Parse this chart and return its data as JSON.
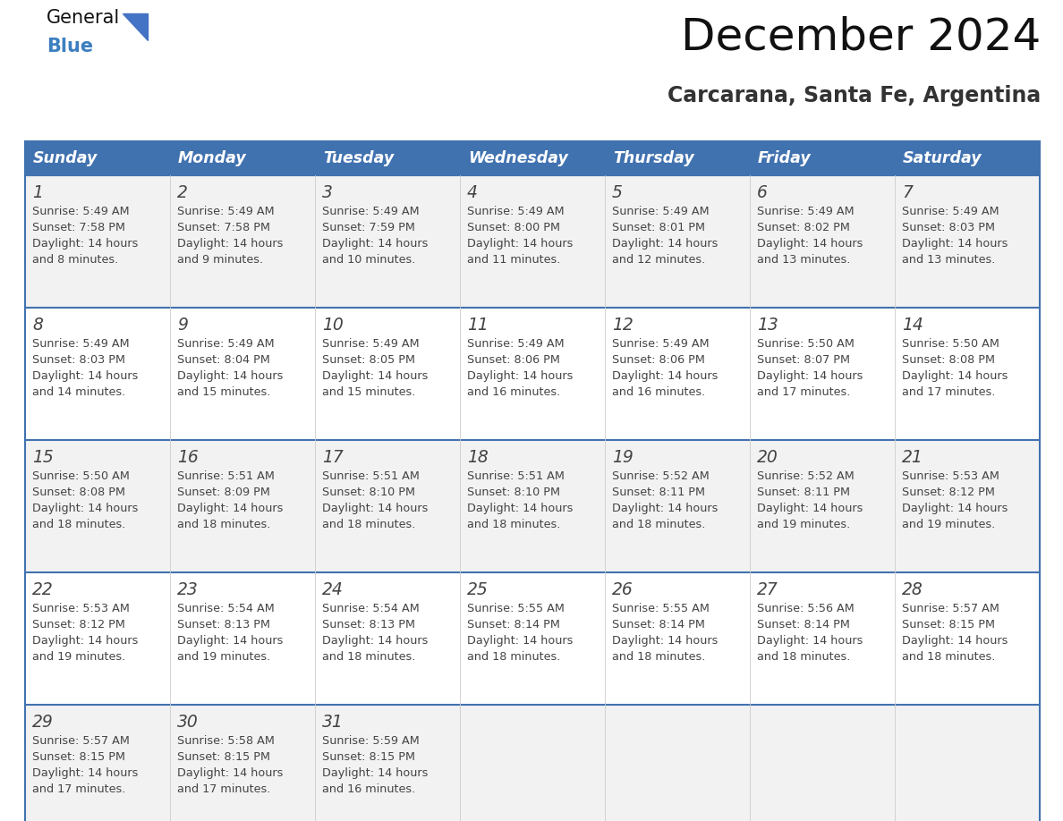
{
  "title": "December 2024",
  "subtitle": "Carcarana, Santa Fe, Argentina",
  "header_color": "#4172B0",
  "header_text_color": "#FFFFFF",
  "cell_bg_odd": "#F2F2F2",
  "cell_bg_even": "#FFFFFF",
  "day_number_color": "#444444",
  "text_color": "#444444",
  "line_color": "#4172B0",
  "days_of_week": [
    "Sunday",
    "Monday",
    "Tuesday",
    "Wednesday",
    "Thursday",
    "Friday",
    "Saturday"
  ],
  "calendar_data": [
    [
      {
        "day": 1,
        "sunrise": "5:49 AM",
        "sunset": "7:58 PM",
        "daylight": "14 hours\nand 8 minutes."
      },
      {
        "day": 2,
        "sunrise": "5:49 AM",
        "sunset": "7:58 PM",
        "daylight": "14 hours\nand 9 minutes."
      },
      {
        "day": 3,
        "sunrise": "5:49 AM",
        "sunset": "7:59 PM",
        "daylight": "14 hours\nand 10 minutes."
      },
      {
        "day": 4,
        "sunrise": "5:49 AM",
        "sunset": "8:00 PM",
        "daylight": "14 hours\nand 11 minutes."
      },
      {
        "day": 5,
        "sunrise": "5:49 AM",
        "sunset": "8:01 PM",
        "daylight": "14 hours\nand 12 minutes."
      },
      {
        "day": 6,
        "sunrise": "5:49 AM",
        "sunset": "8:02 PM",
        "daylight": "14 hours\nand 13 minutes."
      },
      {
        "day": 7,
        "sunrise": "5:49 AM",
        "sunset": "8:03 PM",
        "daylight": "14 hours\nand 13 minutes."
      }
    ],
    [
      {
        "day": 8,
        "sunrise": "5:49 AM",
        "sunset": "8:03 PM",
        "daylight": "14 hours\nand 14 minutes."
      },
      {
        "day": 9,
        "sunrise": "5:49 AM",
        "sunset": "8:04 PM",
        "daylight": "14 hours\nand 15 minutes."
      },
      {
        "day": 10,
        "sunrise": "5:49 AM",
        "sunset": "8:05 PM",
        "daylight": "14 hours\nand 15 minutes."
      },
      {
        "day": 11,
        "sunrise": "5:49 AM",
        "sunset": "8:06 PM",
        "daylight": "14 hours\nand 16 minutes."
      },
      {
        "day": 12,
        "sunrise": "5:49 AM",
        "sunset": "8:06 PM",
        "daylight": "14 hours\nand 16 minutes."
      },
      {
        "day": 13,
        "sunrise": "5:50 AM",
        "sunset": "8:07 PM",
        "daylight": "14 hours\nand 17 minutes."
      },
      {
        "day": 14,
        "sunrise": "5:50 AM",
        "sunset": "8:08 PM",
        "daylight": "14 hours\nand 17 minutes."
      }
    ],
    [
      {
        "day": 15,
        "sunrise": "5:50 AM",
        "sunset": "8:08 PM",
        "daylight": "14 hours\nand 18 minutes."
      },
      {
        "day": 16,
        "sunrise": "5:51 AM",
        "sunset": "8:09 PM",
        "daylight": "14 hours\nand 18 minutes."
      },
      {
        "day": 17,
        "sunrise": "5:51 AM",
        "sunset": "8:10 PM",
        "daylight": "14 hours\nand 18 minutes."
      },
      {
        "day": 18,
        "sunrise": "5:51 AM",
        "sunset": "8:10 PM",
        "daylight": "14 hours\nand 18 minutes."
      },
      {
        "day": 19,
        "sunrise": "5:52 AM",
        "sunset": "8:11 PM",
        "daylight": "14 hours\nand 18 minutes."
      },
      {
        "day": 20,
        "sunrise": "5:52 AM",
        "sunset": "8:11 PM",
        "daylight": "14 hours\nand 19 minutes."
      },
      {
        "day": 21,
        "sunrise": "5:53 AM",
        "sunset": "8:12 PM",
        "daylight": "14 hours\nand 19 minutes."
      }
    ],
    [
      {
        "day": 22,
        "sunrise": "5:53 AM",
        "sunset": "8:12 PM",
        "daylight": "14 hours\nand 19 minutes."
      },
      {
        "day": 23,
        "sunrise": "5:54 AM",
        "sunset": "8:13 PM",
        "daylight": "14 hours\nand 19 minutes."
      },
      {
        "day": 24,
        "sunrise": "5:54 AM",
        "sunset": "8:13 PM",
        "daylight": "14 hours\nand 18 minutes."
      },
      {
        "day": 25,
        "sunrise": "5:55 AM",
        "sunset": "8:14 PM",
        "daylight": "14 hours\nand 18 minutes."
      },
      {
        "day": 26,
        "sunrise": "5:55 AM",
        "sunset": "8:14 PM",
        "daylight": "14 hours\nand 18 minutes."
      },
      {
        "day": 27,
        "sunrise": "5:56 AM",
        "sunset": "8:14 PM",
        "daylight": "14 hours\nand 18 minutes."
      },
      {
        "day": 28,
        "sunrise": "5:57 AM",
        "sunset": "8:15 PM",
        "daylight": "14 hours\nand 18 minutes."
      }
    ],
    [
      {
        "day": 29,
        "sunrise": "5:57 AM",
        "sunset": "8:15 PM",
        "daylight": "14 hours\nand 17 minutes."
      },
      {
        "day": 30,
        "sunrise": "5:58 AM",
        "sunset": "8:15 PM",
        "daylight": "14 hours\nand 17 minutes."
      },
      {
        "day": 31,
        "sunrise": "5:59 AM",
        "sunset": "8:15 PM",
        "daylight": "14 hours\nand 16 minutes."
      },
      null,
      null,
      null,
      null
    ]
  ]
}
